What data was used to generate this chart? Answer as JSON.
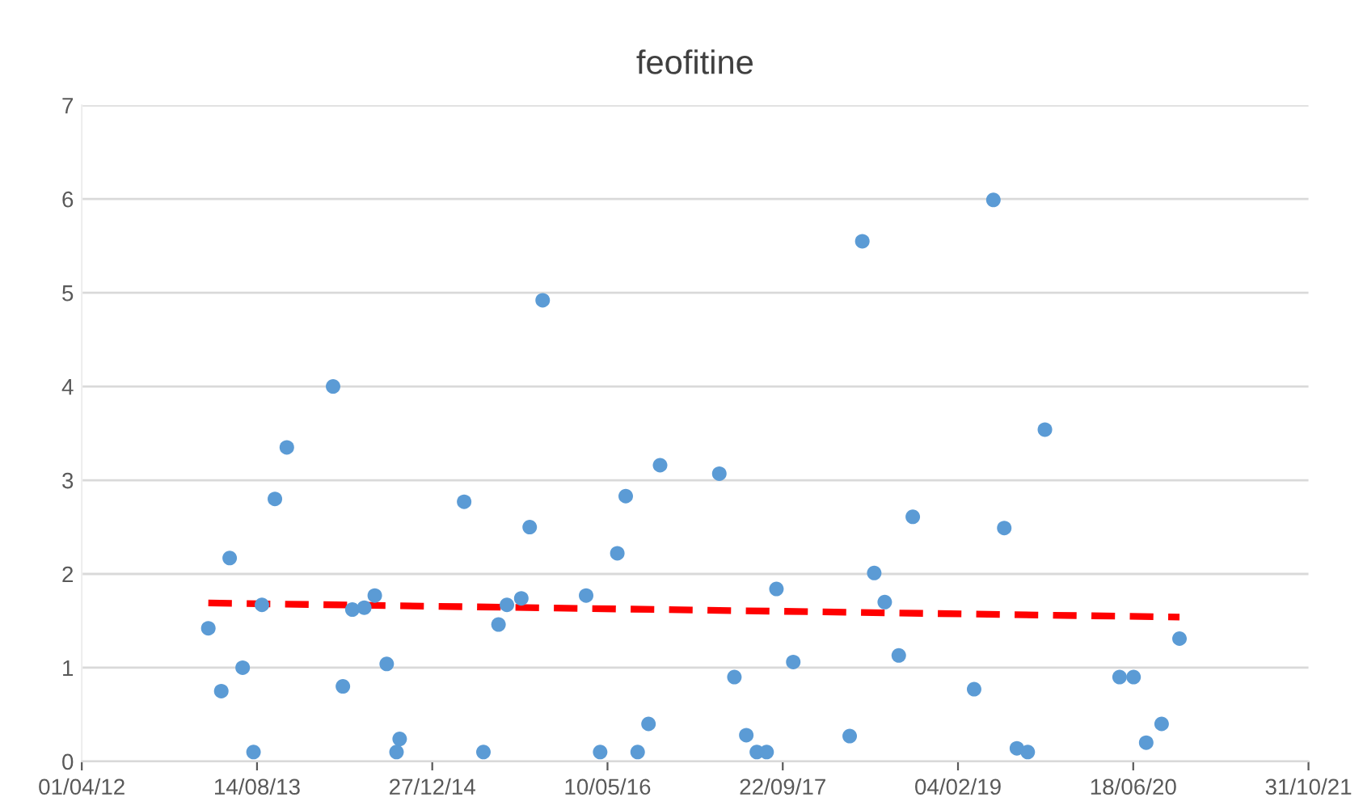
{
  "chart_data": {
    "type": "scatter",
    "title": "feofitine",
    "series": [
      {
        "color": "#5b9bd5",
        "marker": "circle",
        "x": [
          "2013-03-28",
          "2013-05-04",
          "2013-05-28",
          "2013-07-04",
          "2013-08-04",
          "2013-08-28",
          "2013-10-04",
          "2013-11-07",
          "2014-03-19",
          "2014-04-16",
          "2014-05-13",
          "2014-06-16",
          "2014-07-16",
          "2014-08-19",
          "2014-09-16",
          "2014-09-25",
          "2015-03-28",
          "2015-05-22",
          "2015-07-04",
          "2015-07-28",
          "2015-09-07",
          "2015-10-01",
          "2015-11-07",
          "2016-03-10",
          "2016-04-19",
          "2016-06-07",
          "2016-07-01",
          "2016-08-04",
          "2016-09-04",
          "2016-10-07",
          "2017-03-25",
          "2017-05-07",
          "2017-06-10",
          "2017-07-10",
          "2017-08-07",
          "2017-09-04",
          "2017-10-22",
          "2018-04-01",
          "2018-05-07",
          "2018-06-10",
          "2018-07-10",
          "2018-08-19",
          "2018-09-28",
          "2019-03-22",
          "2019-05-16",
          "2019-06-16",
          "2019-07-22",
          "2019-08-22",
          "2019-10-10",
          "2020-05-10",
          "2020-06-19",
          "2020-07-25",
          "2020-09-07",
          "2020-10-28"
        ],
        "values": [
          1.42,
          0.75,
          2.17,
          1.0,
          0.1,
          1.67,
          2.8,
          3.35,
          4.0,
          0.8,
          1.62,
          1.64,
          1.77,
          1.04,
          0.1,
          0.24,
          2.77,
          0.1,
          1.46,
          1.67,
          1.74,
          2.5,
          4.92,
          1.77,
          0.1,
          2.22,
          2.83,
          0.1,
          0.4,
          3.16,
          3.07,
          0.9,
          0.28,
          0.1,
          0.1,
          1.84,
          1.06,
          0.27,
          5.55,
          2.01,
          1.7,
          1.13,
          2.61,
          0.77,
          5.99,
          2.49,
          0.14,
          0.1,
          3.54,
          0.9,
          0.9,
          0.2,
          0.4,
          1.31
        ]
      },
      {
        "type": "line",
        "color": "#ff0000",
        "line_style": "dashed",
        "marker": "none",
        "x": [
          "2013-03-28",
          "2020-10-28"
        ],
        "values": [
          1.69,
          1.54
        ]
      }
    ],
    "xlim": [
      "2012-04-01",
      "2021-10-31"
    ],
    "xticks": [
      {
        "value": "2012-04-01",
        "label": "01/04/12"
      },
      {
        "value": "2013-08-14",
        "label": "14/08/13"
      },
      {
        "value": "2014-12-27",
        "label": "27/12/14"
      },
      {
        "value": "2016-05-10",
        "label": "10/05/16"
      },
      {
        "value": "2017-09-22",
        "label": "22/09/17"
      },
      {
        "value": "2019-02-04",
        "label": "04/02/19"
      },
      {
        "value": "2020-06-18",
        "label": "18/06/20"
      },
      {
        "value": "2021-10-31",
        "label": "31/10/21"
      }
    ],
    "ylim": [
      0,
      7
    ],
    "yticks": [
      0,
      1,
      2,
      3,
      4,
      5,
      6,
      7
    ],
    "grid": "y",
    "legend": false
  }
}
